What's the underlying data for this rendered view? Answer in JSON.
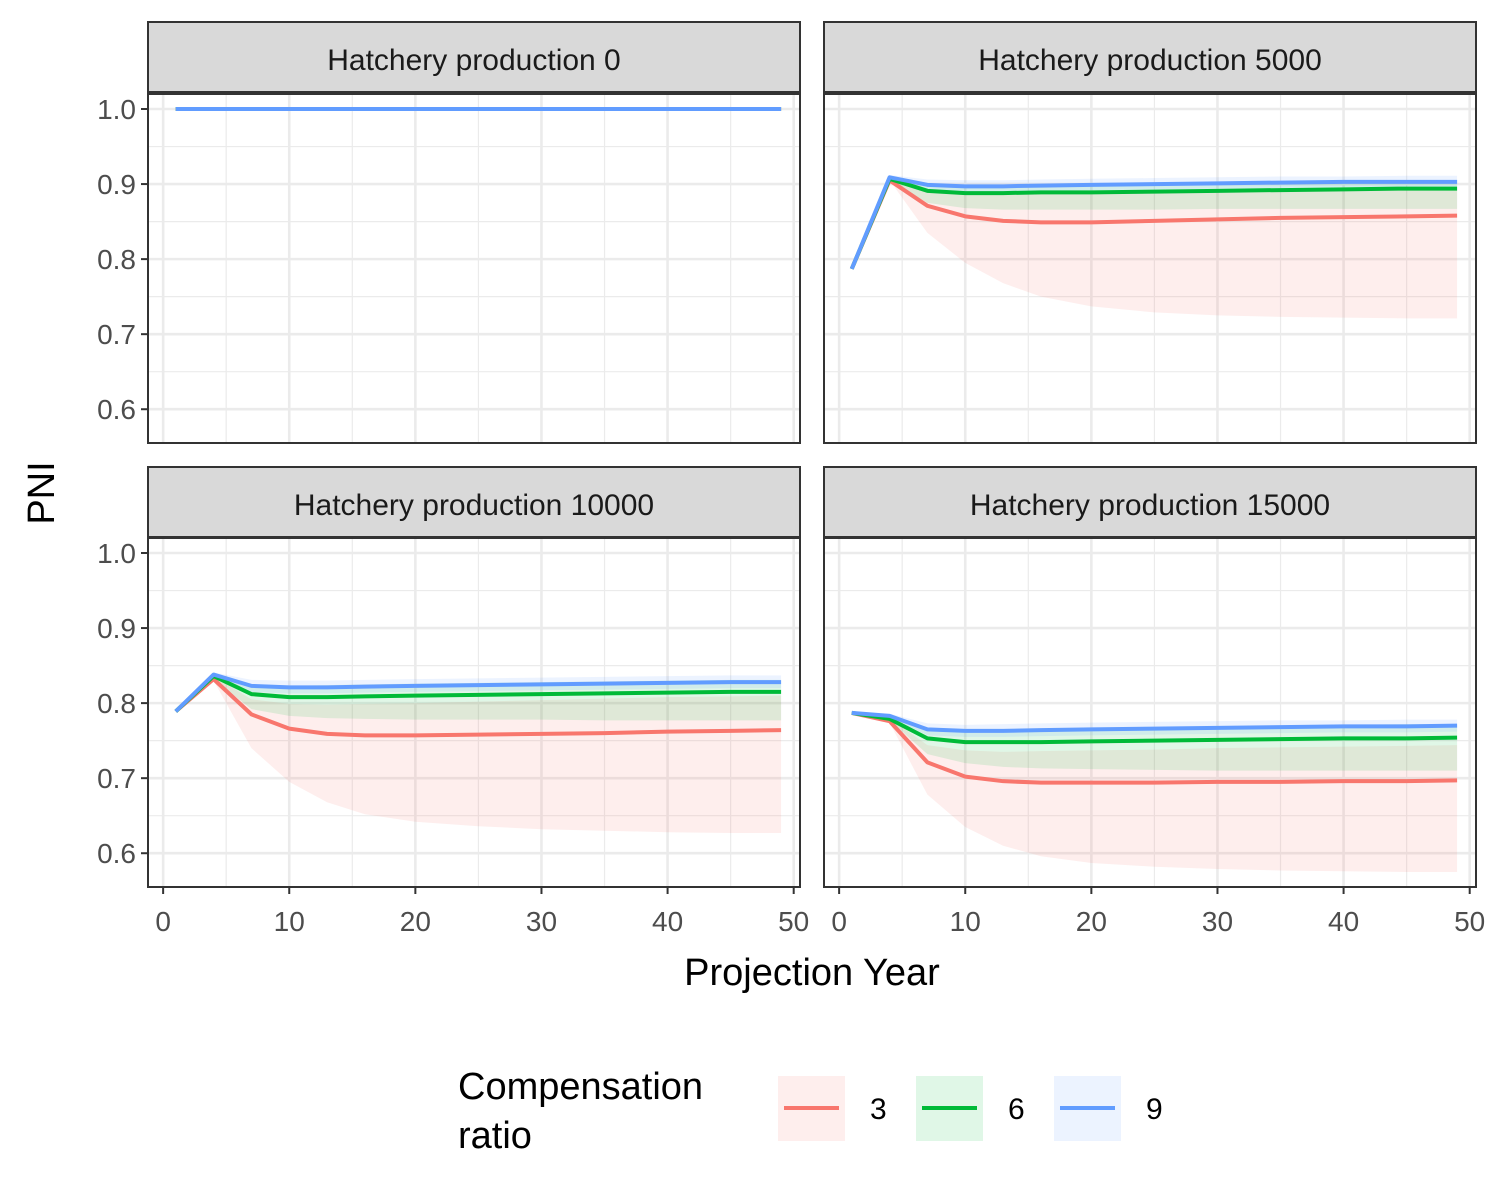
{
  "chart_data": {
    "type": "line",
    "xlabel": "Projection Year",
    "ylabel": "PNI",
    "xlim": [
      -1.2,
      50.5
    ],
    "ylim": [
      0.555,
      1.02
    ],
    "x_ticks": [
      0,
      10,
      20,
      30,
      40,
      50
    ],
    "x_tick_labels": [
      "0",
      "10",
      "20",
      "30",
      "40",
      "50"
    ],
    "y_ticks": [
      0.6,
      0.7,
      0.8,
      0.9,
      1.0
    ],
    "y_tick_labels": [
      "0.6",
      "0.7",
      "0.8",
      "0.9",
      "1.0"
    ],
    "grid": true,
    "legend": {
      "title_lines": [
        "Compensation",
        "ratio"
      ],
      "placement": "bottom",
      "entries": [
        {
          "label": "3",
          "color": "#F8766D"
        },
        {
          "label": "6",
          "color": "#00BA38"
        },
        {
          "label": "9",
          "color": "#619CFF"
        }
      ]
    },
    "panels": [
      {
        "strip": "Hatchery production 0",
        "series": [
          {
            "name": "3",
            "color": "#F8766D",
            "x": [
              1,
              49
            ],
            "y": [
              1.0,
              1.0
            ],
            "lower": [
              1.0,
              1.0
            ],
            "upper": [
              1.0,
              1.0
            ]
          },
          {
            "name": "6",
            "color": "#00BA38",
            "x": [
              1,
              49
            ],
            "y": [
              1.0,
              1.0
            ],
            "lower": [
              1.0,
              1.0
            ],
            "upper": [
              1.0,
              1.0
            ]
          },
          {
            "name": "9",
            "color": "#619CFF",
            "x": [
              1,
              49
            ],
            "y": [
              1.0,
              1.0
            ],
            "lower": [
              1.0,
              1.0
            ],
            "upper": [
              1.0,
              1.0
            ]
          }
        ]
      },
      {
        "strip": "Hatchery production 5000",
        "series": [
          {
            "name": "3",
            "color": "#F8766D",
            "x": [
              1,
              4,
              7,
              10,
              13,
              16,
              20,
              25,
              30,
              35,
              40,
              45,
              49
            ],
            "y": [
              0.787,
              0.905,
              0.871,
              0.857,
              0.851,
              0.849,
              0.849,
              0.851,
              0.853,
              0.855,
              0.856,
              0.857,
              0.858
            ],
            "lower": [
              0.787,
              0.905,
              0.835,
              0.795,
              0.768,
              0.75,
              0.737,
              0.729,
              0.725,
              0.723,
              0.722,
              0.721,
              0.721
            ],
            "upper": [
              0.787,
              0.908,
              0.893,
              0.888,
              0.887,
              0.888,
              0.889,
              0.89,
              0.891,
              0.892,
              0.893,
              0.894,
              0.894
            ]
          },
          {
            "name": "6",
            "color": "#00BA38",
            "x": [
              1,
              4,
              7,
              10,
              13,
              16,
              20,
              25,
              30,
              35,
              40,
              45,
              49
            ],
            "y": [
              0.787,
              0.907,
              0.891,
              0.888,
              0.888,
              0.889,
              0.889,
              0.89,
              0.891,
              0.892,
              0.893,
              0.894,
              0.894
            ],
            "lower": [
              0.787,
              0.905,
              0.875,
              0.868,
              0.866,
              0.866,
              0.866,
              0.866,
              0.867,
              0.867,
              0.867,
              0.867,
              0.867
            ],
            "upper": [
              0.787,
              0.91,
              0.899,
              0.898,
              0.898,
              0.899,
              0.9,
              0.901,
              0.902,
              0.903,
              0.904,
              0.905,
              0.905
            ]
          },
          {
            "name": "9",
            "color": "#619CFF",
            "x": [
              1,
              4,
              7,
              10,
              13,
              16,
              20,
              25,
              30,
              35,
              40,
              45,
              49
            ],
            "y": [
              0.787,
              0.909,
              0.899,
              0.897,
              0.897,
              0.898,
              0.899,
              0.9,
              0.901,
              0.902,
              0.903,
              0.903,
              0.903
            ],
            "lower": [
              0.787,
              0.906,
              0.893,
              0.89,
              0.89,
              0.891,
              0.892,
              0.893,
              0.894,
              0.895,
              0.896,
              0.896,
              0.896
            ],
            "upper": [
              0.787,
              0.912,
              0.906,
              0.905,
              0.905,
              0.906,
              0.907,
              0.908,
              0.909,
              0.91,
              0.91,
              0.911,
              0.911
            ]
          }
        ]
      },
      {
        "strip": "Hatchery production 10000",
        "series": [
          {
            "name": "3",
            "color": "#F8766D",
            "x": [
              1,
              4,
              7,
              10,
              13,
              16,
              20,
              25,
              30,
              35,
              40,
              45,
              49
            ],
            "y": [
              0.789,
              0.832,
              0.785,
              0.766,
              0.759,
              0.757,
              0.757,
              0.758,
              0.759,
              0.76,
              0.762,
              0.763,
              0.764
            ],
            "lower": [
              0.789,
              0.83,
              0.74,
              0.695,
              0.668,
              0.652,
              0.642,
              0.636,
              0.632,
              0.63,
              0.628,
              0.627,
              0.627
            ],
            "upper": [
              0.789,
              0.836,
              0.805,
              0.799,
              0.798,
              0.799,
              0.8,
              0.802,
              0.804,
              0.806,
              0.808,
              0.809,
              0.81
            ]
          },
          {
            "name": "6",
            "color": "#00BA38",
            "x": [
              1,
              4,
              7,
              10,
              13,
              16,
              20,
              25,
              30,
              35,
              40,
              45,
              49
            ],
            "y": [
              0.789,
              0.836,
              0.812,
              0.808,
              0.808,
              0.809,
              0.81,
              0.811,
              0.812,
              0.813,
              0.814,
              0.815,
              0.815
            ],
            "lower": [
              0.789,
              0.832,
              0.792,
              0.783,
              0.78,
              0.779,
              0.778,
              0.778,
              0.778,
              0.777,
              0.777,
              0.777,
              0.777
            ],
            "upper": [
              0.789,
              0.839,
              0.824,
              0.823,
              0.824,
              0.825,
              0.826,
              0.827,
              0.828,
              0.829,
              0.83,
              0.831,
              0.831
            ]
          },
          {
            "name": "9",
            "color": "#619CFF",
            "x": [
              1,
              4,
              7,
              10,
              13,
              16,
              20,
              25,
              30,
              35,
              40,
              45,
              49
            ],
            "y": [
              0.789,
              0.838,
              0.823,
              0.821,
              0.821,
              0.822,
              0.823,
              0.824,
              0.825,
              0.826,
              0.827,
              0.828,
              0.828
            ],
            "lower": [
              0.789,
              0.835,
              0.815,
              0.813,
              0.813,
              0.814,
              0.815,
              0.816,
              0.817,
              0.818,
              0.819,
              0.82,
              0.82
            ],
            "upper": [
              0.789,
              0.841,
              0.831,
              0.83,
              0.83,
              0.831,
              0.832,
              0.833,
              0.834,
              0.835,
              0.836,
              0.837,
              0.837
            ]
          }
        ]
      },
      {
        "strip": "Hatchery production 15000",
        "series": [
          {
            "name": "3",
            "color": "#F8766D",
            "x": [
              1,
              4,
              7,
              10,
              13,
              16,
              20,
              25,
              30,
              35,
              40,
              45,
              49
            ],
            "y": [
              0.787,
              0.776,
              0.721,
              0.702,
              0.696,
              0.694,
              0.694,
              0.694,
              0.695,
              0.695,
              0.696,
              0.696,
              0.697
            ],
            "lower": [
              0.787,
              0.774,
              0.678,
              0.635,
              0.61,
              0.596,
              0.587,
              0.582,
              0.579,
              0.577,
              0.576,
              0.575,
              0.575
            ],
            "upper": [
              0.787,
              0.78,
              0.744,
              0.737,
              0.735,
              0.736,
              0.737,
              0.738,
              0.74,
              0.741,
              0.742,
              0.743,
              0.744
            ]
          },
          {
            "name": "6",
            "color": "#00BA38",
            "x": [
              1,
              4,
              7,
              10,
              13,
              16,
              20,
              25,
              30,
              35,
              40,
              45,
              49
            ],
            "y": [
              0.787,
              0.779,
              0.753,
              0.748,
              0.748,
              0.748,
              0.749,
              0.75,
              0.751,
              0.752,
              0.753,
              0.753,
              0.754
            ],
            "lower": [
              0.787,
              0.777,
              0.732,
              0.72,
              0.715,
              0.713,
              0.712,
              0.711,
              0.71,
              0.71,
              0.71,
              0.71,
              0.71
            ],
            "upper": [
              0.787,
              0.783,
              0.766,
              0.764,
              0.765,
              0.766,
              0.767,
              0.768,
              0.769,
              0.77,
              0.771,
              0.772,
              0.772
            ]
          },
          {
            "name": "9",
            "color": "#619CFF",
            "x": [
              1,
              4,
              7,
              10,
              13,
              16,
              20,
              25,
              30,
              35,
              40,
              45,
              49
            ],
            "y": [
              0.787,
              0.783,
              0.765,
              0.763,
              0.763,
              0.764,
              0.765,
              0.766,
              0.767,
              0.768,
              0.769,
              0.769,
              0.77
            ],
            "lower": [
              0.787,
              0.78,
              0.757,
              0.755,
              0.755,
              0.756,
              0.757,
              0.758,
              0.759,
              0.76,
              0.761,
              0.761,
              0.762
            ],
            "upper": [
              0.787,
              0.786,
              0.773,
              0.771,
              0.772,
              0.773,
              0.774,
              0.775,
              0.776,
              0.777,
              0.777,
              0.778,
              0.778
            ]
          }
        ]
      }
    ]
  }
}
